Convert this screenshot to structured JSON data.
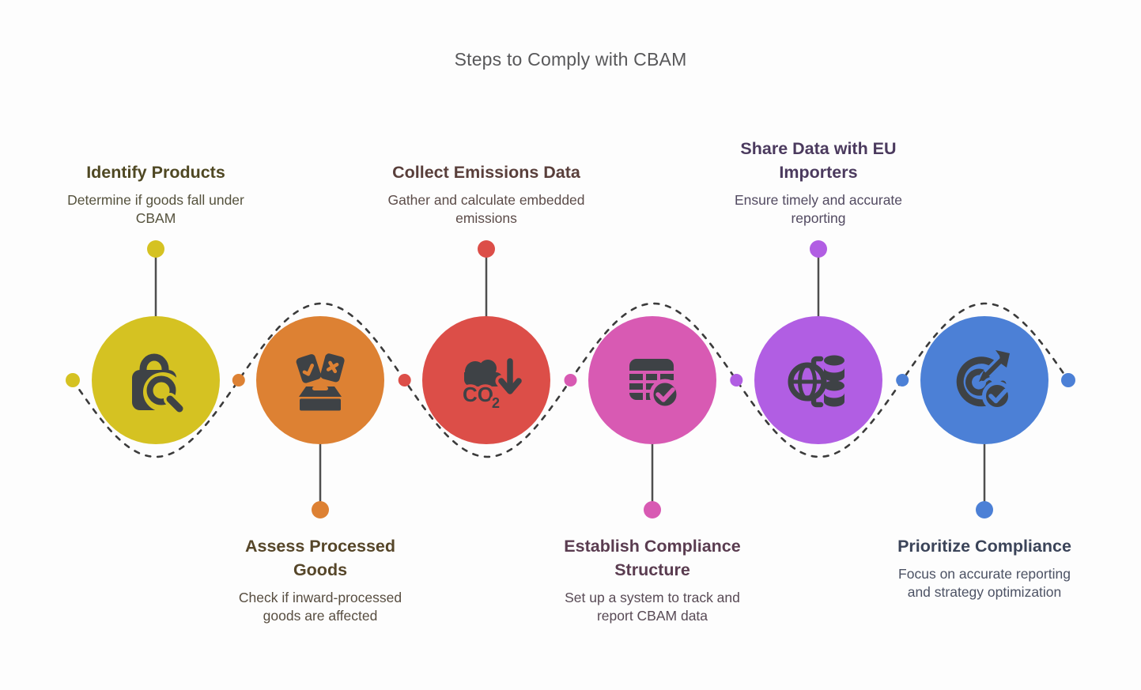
{
  "title": "Steps to Comply with CBAM",
  "colors": {
    "background": "#fdfdfd",
    "title_text": "#58585a",
    "icon": "#3e4246",
    "connector_line": "#3b3b3b",
    "stem_line": "#4f4f4f"
  },
  "connector": {
    "style": "dashed-wave",
    "left_end_dot_color": "#d5c222",
    "right_end_dot_color": "#4c80d6",
    "gap_dot_colors": [
      "#dd8133",
      "#dc4e48",
      "#d85ab3",
      "#b15ee3",
      "#4c80d6"
    ]
  },
  "steps": [
    {
      "title": "Identify Products",
      "description": "Determine if goods fall under\nCBAM",
      "position": "top",
      "circle_color": "#d5c222",
      "heading_color": "#4f4823",
      "body_color": "#55523d",
      "icon": "shopping-bag-search-icon"
    },
    {
      "title": "Assess Processed\nGoods",
      "description": "Check if inward-processed\ngoods are affected",
      "position": "bottom",
      "circle_color": "#dd8133",
      "heading_color": "#564629",
      "body_color": "#574d40",
      "icon": "ballot-box-check-cross-icon"
    },
    {
      "title": "Collect Emissions Data",
      "description": "Gather and calculate embedded\nemissions",
      "position": "top",
      "circle_color": "#dc4e48",
      "heading_color": "#593f3b",
      "body_color": "#5c4c49",
      "icon": "co2-cloud-arrow-down-icon"
    },
    {
      "title": "Establish Compliance\nStructure",
      "description": "Set up a system to track and\nreport CBAM data",
      "position": "bottom",
      "circle_color": "#d85ab3",
      "heading_color": "#5a3c50",
      "body_color": "#584a55",
      "icon": "table-checkmark-icon"
    },
    {
      "title": "Share Data with EU\nImporters",
      "description": "Ensure timely and accurate\nreporting",
      "position": "top",
      "circle_color": "#b15ee3",
      "heading_color": "#4b3a5e",
      "body_color": "#524a61",
      "icon": "globe-database-icon"
    },
    {
      "title": "Prioritize Compliance",
      "description": "Focus on accurate reporting\nand strategy optimization",
      "position": "bottom",
      "circle_color": "#4c80d6",
      "heading_color": "#3b4459",
      "body_color": "#4c5264",
      "icon": "target-dart-checkmark-icon"
    }
  ]
}
